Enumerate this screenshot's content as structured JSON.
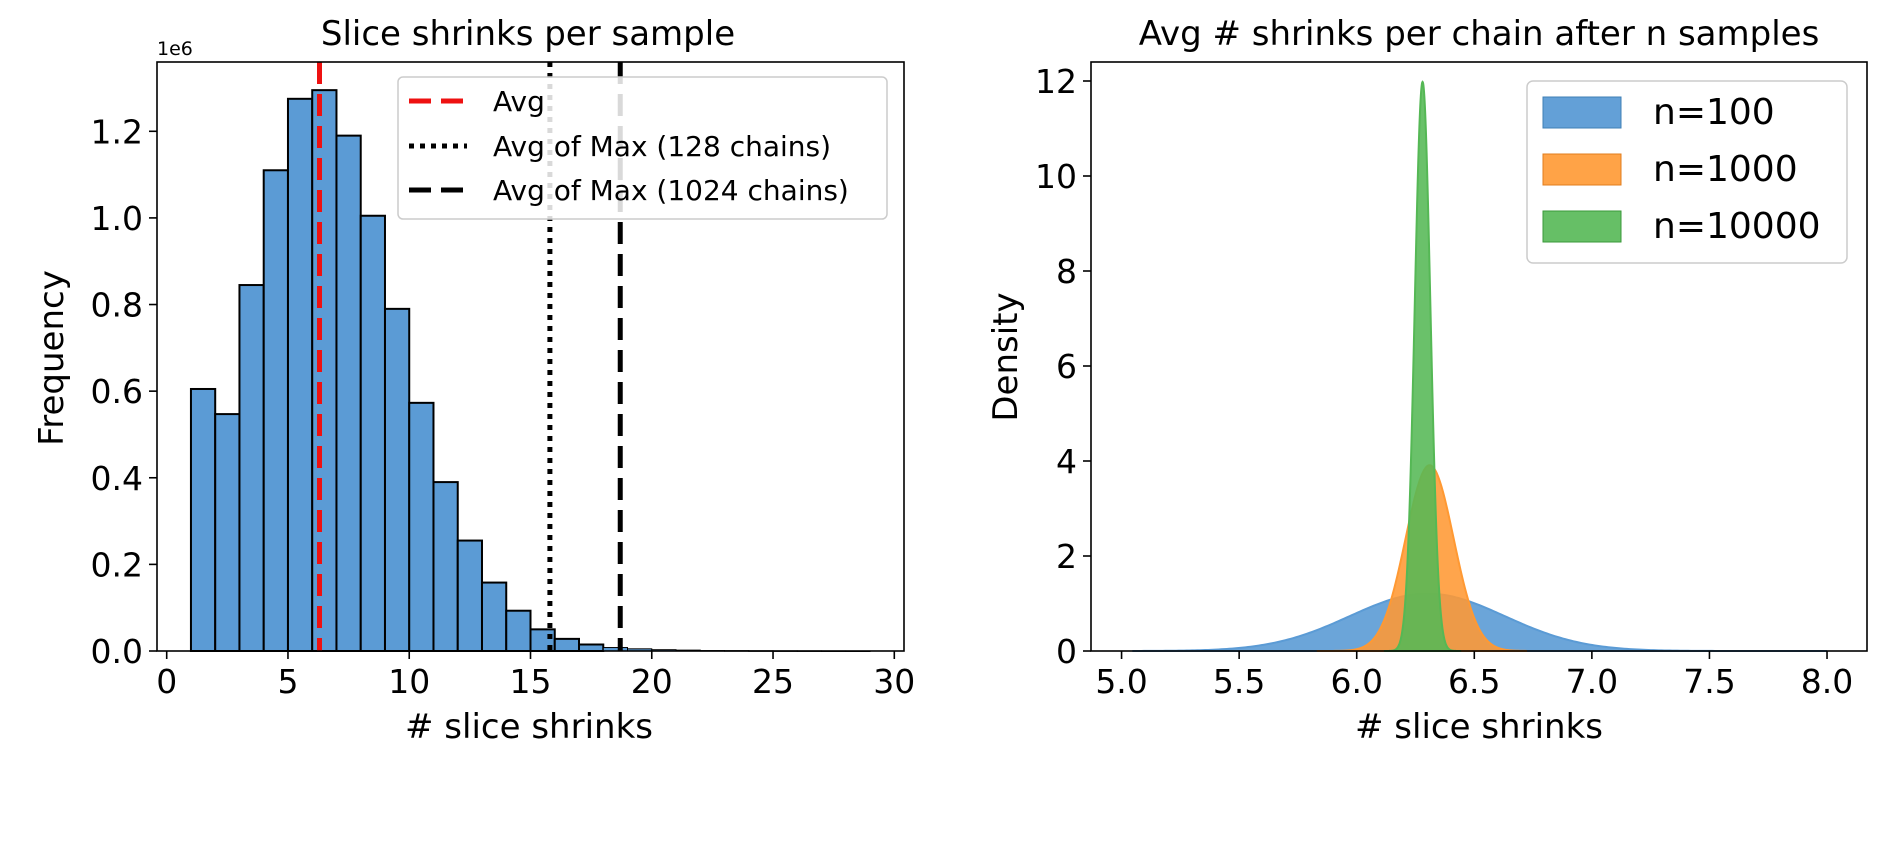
{
  "chart_data": [
    {
      "type": "bar",
      "title": "Slice shrinks per sample",
      "xlabel": "# slice shrinks",
      "ylabel": "Frequency",
      "y_scale_label": "1e6",
      "xlim": [
        -0.4,
        30.4
      ],
      "ylim": [
        0,
        1.36
      ],
      "xticks": [
        0,
        5,
        10,
        15,
        20,
        25,
        30
      ],
      "xtick_labels": [
        "0",
        "5",
        "10",
        "15",
        "20",
        "25",
        "30"
      ],
      "yticks": [
        0.0,
        0.2,
        0.4,
        0.6,
        0.8,
        1.0,
        1.2
      ],
      "ytick_labels": [
        "0.0",
        "0.2",
        "0.4",
        "0.6",
        "0.8",
        "1.0",
        "1.2"
      ],
      "bin_edges": [
        1,
        2,
        3,
        4,
        5,
        6,
        7,
        8,
        9,
        10,
        11,
        12,
        13,
        14,
        15,
        16,
        17,
        18,
        19,
        20,
        21,
        22,
        23,
        24,
        25,
        26,
        27,
        28,
        29
      ],
      "values": [
        0.605,
        0.547,
        0.845,
        1.11,
        1.275,
        1.295,
        1.19,
        1.005,
        0.79,
        0.573,
        0.39,
        0.255,
        0.158,
        0.093,
        0.05,
        0.028,
        0.015,
        0.008,
        0.005,
        0.003,
        0.002,
        0.001,
        0.0008,
        0.0005,
        0.0003,
        0.0002,
        0.0001,
        5e-05
      ],
      "bar_color": "#5b9bd5",
      "vlines": [
        {
          "name": "Avg",
          "x": 6.3,
          "color": "#ee1111",
          "style": "dashed"
        },
        {
          "name": "Avg of Max (128 chains)",
          "x": 15.8,
          "color": "#000000",
          "style": "dotted"
        },
        {
          "name": "Avg of Max (1024 chains)",
          "x": 18.7,
          "color": "#000000",
          "style": "dashed"
        }
      ],
      "legend": {
        "position": "top-right",
        "entries": [
          "Avg",
          "Avg of Max (128 chains)",
          "Avg of Max (1024 chains)"
        ]
      },
      "grid": false
    },
    {
      "type": "area",
      "title": "Avg # shrinks per chain after n samples",
      "xlabel": "# slice shrinks",
      "ylabel": "Density",
      "xlim": [
        4.87,
        8.17
      ],
      "ylim": [
        0,
        12.4
      ],
      "xticks": [
        5.0,
        5.5,
        6.0,
        6.5,
        7.0,
        7.5,
        8.0
      ],
      "xtick_labels": [
        "5.0",
        "5.5",
        "6.0",
        "6.5",
        "7.0",
        "7.5",
        "8.0"
      ],
      "yticks": [
        0,
        2,
        4,
        6,
        8,
        10,
        12
      ],
      "ytick_labels": [
        "0",
        "2",
        "4",
        "6",
        "8",
        "10",
        "12"
      ],
      "series": [
        {
          "name": "n=100",
          "color": "#5b9bd5",
          "mean": 6.3,
          "sd": 0.33,
          "x_range": [
            5.05,
            8.0
          ]
        },
        {
          "name": "n=1000",
          "color": "#ff9933",
          "mean": 6.31,
          "sd": 0.102,
          "x_range": [
            5.83,
            6.72
          ]
        },
        {
          "name": "n=10000",
          "color": "#55b855",
          "mean": 6.28,
          "sd": 0.0333,
          "x_range": [
            6.12,
            6.44
          ]
        }
      ],
      "legend": {
        "position": "top-right",
        "entries": [
          "n=100",
          "n=1000",
          "n=10000"
        ]
      },
      "grid": false
    }
  ]
}
